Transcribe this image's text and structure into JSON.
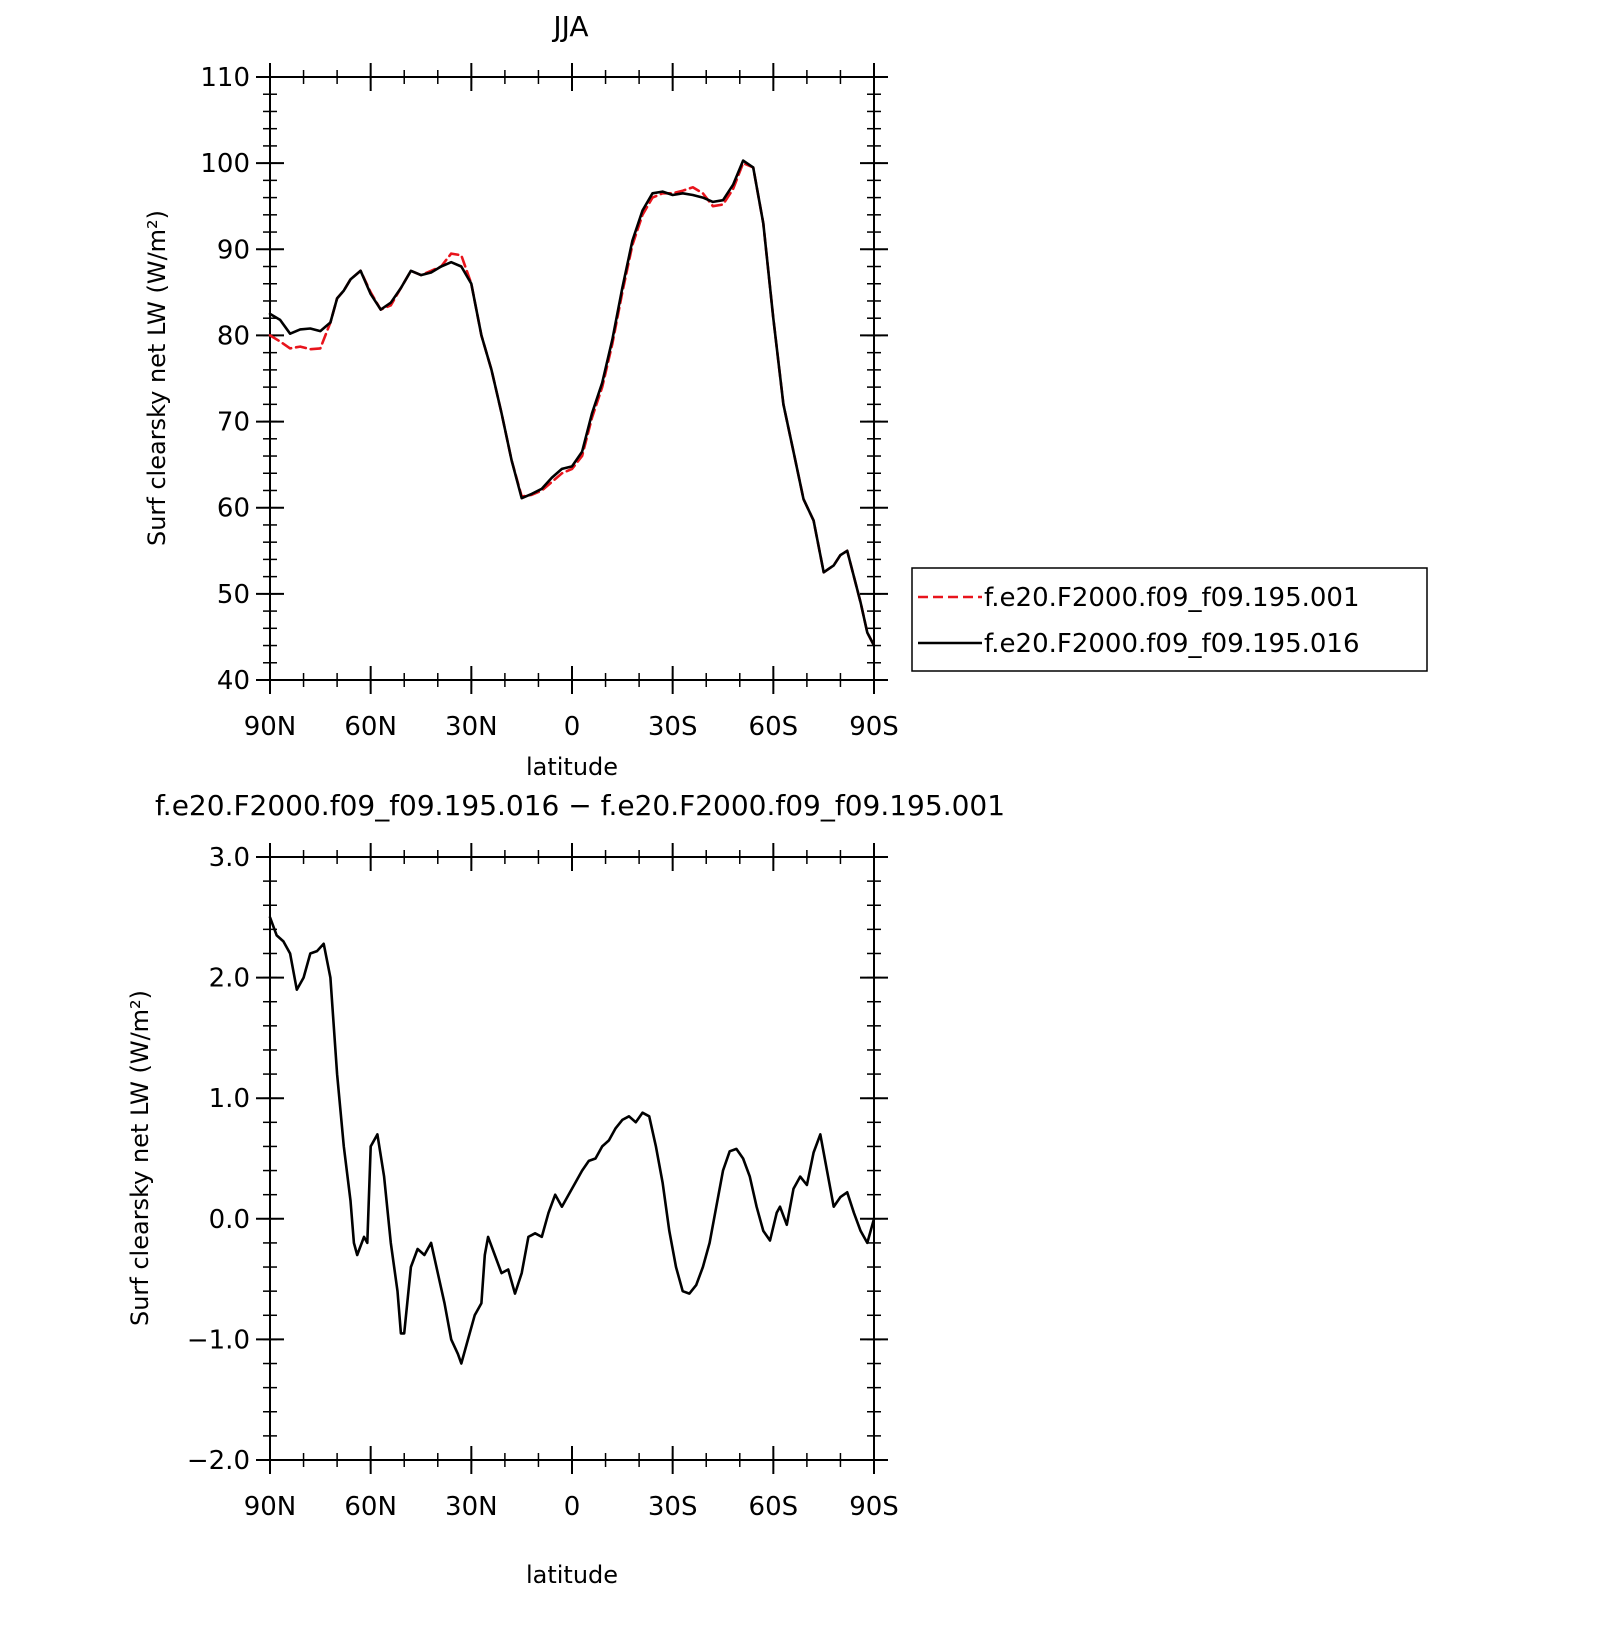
{
  "chart_data": [
    {
      "type": "line",
      "title": "JJA",
      "xlabel": "latitude",
      "ylabel": "Surf clearsky net LW (W/m²)",
      "xlim": [
        90,
        -90
      ],
      "xticks": [
        90,
        60,
        30,
        0,
        -30,
        -60,
        -90
      ],
      "xtick_labels": [
        "90N",
        "60N",
        "30N",
        "0",
        "30S",
        "60S",
        "90S"
      ],
      "ylim": [
        40,
        110
      ],
      "yticks": [
        40,
        50,
        60,
        70,
        80,
        90,
        100,
        110
      ],
      "ytick_labels": [
        "40",
        "50",
        "60",
        "70",
        "80",
        "90",
        "100",
        "110"
      ],
      "legend_placement": "right",
      "series": [
        {
          "name": "f.e20.F2000.f09_f09.195.001",
          "color": "#e8141c",
          "dash": "dashed",
          "x": [
            90,
            87,
            84,
            81,
            78,
            75,
            72,
            70,
            68,
            66,
            63,
            60,
            57,
            54,
            51,
            48,
            45,
            42,
            39,
            36,
            33,
            30,
            27,
            24,
            21,
            18,
            15,
            12,
            9,
            6,
            3,
            0,
            -3,
            -6,
            -9,
            -12,
            -15,
            -18,
            -21,
            -24,
            -27,
            -30,
            -33,
            -36,
            -39,
            -42,
            -45,
            -48,
            -51,
            -54,
            -57,
            -60,
            -63,
            -66,
            -69,
            -72,
            -75,
            -78,
            -80,
            -82,
            -84,
            -86,
            -88,
            -90
          ],
          "y": [
            80.0,
            79.3,
            78.5,
            78.7,
            78.4,
            78.5,
            81.5,
            84.3,
            85.2,
            86.5,
            87.5,
            85.0,
            83.0,
            83.5,
            85.5,
            87.5,
            87.0,
            87.5,
            88.0,
            89.5,
            89.3,
            86.0,
            80.0,
            76.0,
            71.0,
            65.5,
            61.3,
            61.5,
            62.0,
            63.0,
            64.0,
            64.5,
            66.0,
            70.5,
            74.0,
            79.0,
            85.0,
            90.5,
            94.0,
            96.0,
            96.5,
            96.5,
            96.8,
            97.2,
            96.5,
            95.0,
            95.2,
            97.0,
            100.0,
            99.5,
            93.0,
            82.0,
            72.0,
            66.5,
            61.0,
            58.5,
            52.5,
            53.3,
            54.5,
            55.0,
            52.0,
            49.0,
            45.5,
            44.0
          ]
        },
        {
          "name": "f.e20.F2000.f09_f09.195.016",
          "color": "#000000",
          "dash": "solid",
          "x": [
            90,
            87,
            84,
            81,
            78,
            75,
            72,
            70,
            68,
            66,
            63,
            60,
            57,
            54,
            51,
            48,
            45,
            42,
            39,
            36,
            33,
            30,
            27,
            24,
            21,
            18,
            15,
            12,
            9,
            6,
            3,
            0,
            -3,
            -6,
            -9,
            -12,
            -15,
            -18,
            -21,
            -24,
            -27,
            -30,
            -33,
            -36,
            -39,
            -42,
            -45,
            -48,
            -51,
            -54,
            -57,
            -60,
            -63,
            -66,
            -69,
            -72,
            -75,
            -78,
            -80,
            -82,
            -84,
            -86,
            -88,
            -90
          ],
          "y": [
            82.5,
            81.8,
            80.2,
            80.7,
            80.8,
            80.5,
            81.5,
            84.3,
            85.2,
            86.5,
            87.5,
            84.8,
            83.0,
            83.8,
            85.5,
            87.5,
            87.0,
            87.3,
            88.0,
            88.5,
            88.0,
            86.0,
            80.0,
            76.0,
            71.0,
            65.5,
            61.1,
            61.6,
            62.2,
            63.5,
            64.5,
            64.8,
            66.5,
            71.0,
            74.5,
            79.5,
            85.5,
            91.0,
            94.5,
            96.5,
            96.7,
            96.3,
            96.5,
            96.3,
            96.0,
            95.5,
            95.7,
            97.5,
            100.3,
            99.5,
            93.0,
            82.0,
            72.0,
            66.5,
            61.0,
            58.5,
            52.5,
            53.3,
            54.5,
            55.0,
            52.0,
            49.0,
            45.5,
            44.0
          ]
        }
      ]
    },
    {
      "type": "line",
      "title": "f.e20.F2000.f09_f09.195.016 − f.e20.F2000.f09_f09.195.001",
      "xlabel": "latitude",
      "ylabel": "Surf clearsky net LW (W/m²)",
      "xlim": [
        90,
        -90
      ],
      "xticks": [
        90,
        60,
        30,
        0,
        -30,
        -60,
        -90
      ],
      "xtick_labels": [
        "90N",
        "60N",
        "30N",
        "0",
        "30S",
        "60S",
        "90S"
      ],
      "ylim": [
        -2.0,
        3.0
      ],
      "yticks": [
        -2.0,
        -1.0,
        0.0,
        1.0,
        2.0,
        3.0
      ],
      "ytick_labels": [
        "−2.0",
        "−1.0",
        "0.0",
        "1.0",
        "2.0",
        "3.0"
      ],
      "series": [
        {
          "color": "#000000",
          "dash": "solid",
          "x": [
            90,
            88,
            86,
            84,
            82,
            80,
            78,
            76,
            74,
            72,
            70,
            68,
            66,
            65,
            64,
            62,
            61,
            60,
            58,
            56,
            54,
            52,
            51,
            50,
            48,
            46,
            44,
            42,
            40,
            38,
            36,
            34,
            33,
            31,
            29,
            27,
            26,
            25,
            23,
            21,
            19,
            17,
            15,
            13,
            11,
            9,
            7,
            5,
            3,
            1,
            -1,
            -3,
            -5,
            -7,
            -9,
            -11,
            -13,
            -15,
            -17,
            -19,
            -21,
            -23,
            -25,
            -27,
            -29,
            -31,
            -33,
            -35,
            -37,
            -39,
            -41,
            -43,
            -45,
            -47,
            -49,
            -51,
            -53,
            -55,
            -57,
            -59,
            -61,
            -62,
            -64,
            -66,
            -68,
            -70,
            -72,
            -74,
            -76,
            -78,
            -80,
            -82,
            -84,
            -86,
            -88,
            -90
          ],
          "y": [
            2.5,
            2.35,
            2.3,
            2.2,
            1.9,
            2.0,
            2.2,
            2.22,
            2.28,
            2.0,
            1.2,
            0.6,
            0.15,
            -0.2,
            -0.3,
            -0.15,
            -0.2,
            0.6,
            0.7,
            0.35,
            -0.2,
            -0.6,
            -0.95,
            -0.95,
            -0.4,
            -0.25,
            -0.3,
            -0.2,
            -0.45,
            -0.7,
            -1.0,
            -1.12,
            -1.2,
            -1.0,
            -0.8,
            -0.7,
            -0.3,
            -0.15,
            -0.3,
            -0.45,
            -0.42,
            -0.62,
            -0.45,
            -0.15,
            -0.12,
            -0.15,
            0.05,
            0.2,
            0.1,
            0.2,
            0.3,
            0.4,
            0.48,
            0.5,
            0.6,
            0.65,
            0.75,
            0.82,
            0.85,
            0.8,
            0.88,
            0.85,
            0.6,
            0.3,
            -0.1,
            -0.4,
            -0.6,
            -0.62,
            -0.55,
            -0.4,
            -0.2,
            0.1,
            0.4,
            0.56,
            0.58,
            0.5,
            0.35,
            0.1,
            -0.1,
            -0.18,
            0.05,
            0.1,
            -0.05,
            0.25,
            0.35,
            0.28,
            0.55,
            0.7,
            0.4,
            0.1,
            0.18,
            0.22,
            0.05,
            -0.1,
            -0.2,
            0.0
          ]
        }
      ]
    }
  ]
}
